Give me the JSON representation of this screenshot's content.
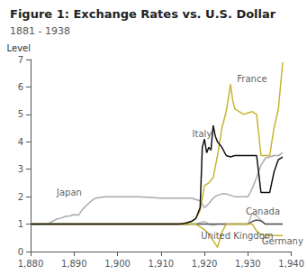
{
  "chart_data": {
    "type": "line",
    "title": "Figure 1: Exchange Rates vs. U.S. Dollar",
    "subtitle": "1881 - 1938",
    "ylabel": "Level",
    "xlim": [
      1880,
      1940
    ],
    "ylim": [
      0,
      7
    ],
    "xticks": [
      1880,
      1890,
      1900,
      1910,
      1920,
      1930,
      1940
    ],
    "yticks": [
      0,
      1,
      2,
      3,
      4,
      5,
      6,
      7
    ],
    "grid": false,
    "series": [
      {
        "name": "United Kingdom",
        "color": "#bbbbbb",
        "x": [
          1880,
          1890,
          1900,
          1910,
          1913,
          1914,
          1915,
          1916,
          1917,
          1918,
          1919,
          1920,
          1921,
          1922,
          1923,
          1924,
          1925,
          1926,
          1927,
          1928,
          1929,
          1930,
          1931,
          1932,
          1933,
          1934,
          1935,
          1936,
          1937,
          1938
        ],
        "values": [
          1.0,
          1.0,
          1.0,
          1.0,
          1.0,
          1.0,
          0.98,
          0.98,
          1.0,
          1.0,
          1.05,
          1.1,
          1.0,
          0.95,
          1.0,
          1.0,
          1.0,
          1.0,
          1.0,
          1.0,
          1.0,
          1.0,
          1.4,
          1.3,
          1.15,
          1.0,
          1.0,
          1.0,
          1.0,
          1.0
        ]
      },
      {
        "name": "Canada",
        "color": "#555555",
        "x": [
          1880,
          1910,
          1913,
          1914,
          1915,
          1920,
          1925,
          1928,
          1929,
          1930,
          1931,
          1932,
          1933,
          1934,
          1935,
          1936,
          1937,
          1938
        ],
        "values": [
          1.0,
          1.0,
          1.0,
          1.0,
          1.0,
          1.0,
          1.0,
          1.0,
          1.0,
          1.0,
          1.1,
          1.15,
          1.12,
          1.0,
          1.0,
          1.0,
          1.0,
          1.0
        ]
      },
      {
        "name": "Germany",
        "color": "#c8b432",
        "x": [
          1880,
          1890,
          1900,
          1910,
          1913,
          1914,
          1915,
          1916,
          1917,
          1918,
          1919,
          1920,
          1921,
          1922,
          1923,
          1924,
          1925,
          1926,
          1927,
          1928,
          1929,
          1930,
          1931,
          1932,
          1933,
          1934,
          1935,
          1936,
          1937,
          1938
        ],
        "values": [
          1.0,
          1.0,
          1.0,
          1.0,
          1.0,
          1.0,
          1.0,
          1.0,
          1.0,
          1.0,
          0.9,
          0.8,
          0.65,
          0.4,
          0.15,
          0.7,
          1.0,
          1.0,
          1.0,
          1.0,
          1.0,
          1.0,
          1.0,
          0.75,
          0.62,
          0.58,
          0.58,
          0.58,
          0.58,
          0.58
        ]
      },
      {
        "name": "Japan",
        "color": "#aaaaaa",
        "x": [
          1880,
          1882,
          1884,
          1885,
          1886,
          1887,
          1888,
          1889,
          1890,
          1891,
          1892,
          1893,
          1894,
          1895,
          1896,
          1897,
          1898,
          1900,
          1905,
          1910,
          1913,
          1914,
          1915,
          1916,
          1917,
          1918,
          1919,
          1920,
          1921,
          1922,
          1923,
          1924,
          1925,
          1926,
          1927,
          1928,
          1929,
          1930,
          1931,
          1932,
          1933,
          1934,
          1935,
          1936,
          1937,
          1938
        ],
        "values": [
          0.98,
          0.98,
          1.02,
          1.1,
          1.18,
          1.22,
          1.28,
          1.3,
          1.35,
          1.32,
          1.55,
          1.7,
          1.85,
          1.95,
          1.97,
          2.0,
          2.0,
          2.0,
          2.0,
          1.95,
          1.95,
          1.95,
          1.95,
          1.95,
          1.95,
          1.9,
          1.85,
          1.6,
          1.75,
          1.95,
          2.05,
          2.1,
          2.1,
          2.05,
          2.0,
          2.0,
          2.0,
          2.0,
          2.3,
          2.7,
          3.15,
          3.4,
          3.45,
          3.5,
          3.5,
          3.6
        ]
      },
      {
        "name": "France",
        "color": "#c8b432",
        "x": [
          1880,
          1890,
          1900,
          1910,
          1913,
          1914,
          1915,
          1916,
          1917,
          1918,
          1919,
          1920,
          1921,
          1922,
          1923,
          1924,
          1925,
          1926,
          1926.5,
          1927,
          1927.5,
          1928,
          1929,
          1930,
          1931,
          1932,
          1933,
          1934,
          1935,
          1936,
          1937,
          1938
        ],
        "values": [
          1.0,
          1.0,
          1.0,
          1.0,
          1.0,
          1.0,
          1.0,
          1.05,
          1.1,
          1.2,
          1.5,
          2.4,
          2.5,
          2.7,
          3.5,
          4.5,
          5.1,
          6.1,
          5.5,
          5.2,
          5.15,
          5.1,
          5.0,
          5.05,
          5.1,
          5.0,
          3.5,
          3.5,
          3.5,
          4.5,
          5.2,
          6.9
        ]
      },
      {
        "name": "Italy",
        "color": "#111111",
        "x": [
          1880,
          1890,
          1900,
          1910,
          1913,
          1914,
          1915,
          1916,
          1917,
          1918,
          1919,
          1919.5,
          1920,
          1920.5,
          1921,
          1921.5,
          1922,
          1922.5,
          1923,
          1924,
          1925,
          1926,
          1927,
          1928,
          1929,
          1930,
          1931,
          1932,
          1933,
          1934,
          1935,
          1936,
          1937,
          1938
        ],
        "values": [
          1.0,
          1.0,
          1.0,
          1.0,
          1.0,
          1.0,
          1.02,
          1.05,
          1.1,
          1.2,
          1.6,
          3.8,
          4.1,
          3.6,
          3.8,
          3.7,
          4.6,
          4.2,
          4.0,
          3.8,
          3.5,
          3.45,
          3.5,
          3.5,
          3.5,
          3.5,
          3.5,
          3.5,
          2.15,
          2.15,
          2.15,
          2.9,
          3.35,
          3.45
        ]
      }
    ],
    "annotations": [
      {
        "text": "Japan",
        "x": 1886,
        "y": 2.15
      },
      {
        "text": "Italy",
        "x": 1917.2,
        "y": 4.3
      },
      {
        "text": "France",
        "x": 1927.5,
        "y": 6.3
      },
      {
        "text": "United Kingdom",
        "x": 1919.2,
        "y": 0.58
      },
      {
        "text": "Canada",
        "x": 1929.5,
        "y": 1.45
      },
      {
        "text": "Germany",
        "x": 1933.2,
        "y": 0.38
      }
    ]
  }
}
